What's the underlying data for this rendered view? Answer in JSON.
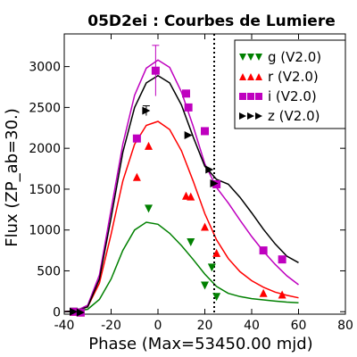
{
  "chart_data": {
    "type": "line",
    "title": "05D2ei : Courbes de Lumiere",
    "xlabel": "Phase (Max=53450.00 mjd)",
    "ylabel": "Flux (ZP_ab=30.)",
    "xlim": [
      -40,
      80
    ],
    "ylim": [
      -30,
      3400
    ],
    "x_ticks": [
      -40,
      -20,
      0,
      20,
      40,
      60,
      80
    ],
    "y_ticks": [
      0,
      500,
      1000,
      1500,
      2000,
      2500,
      3000
    ],
    "grid": false,
    "legend_position": "top-right",
    "vertical_line": {
      "x": 24,
      "style": "dotted"
    },
    "series": [
      {
        "name": "g (V2.0)",
        "color": "#008000",
        "marker": "triangle-down",
        "points": [
          [
            -36,
            0
          ],
          [
            -33,
            -10
          ],
          [
            -4,
            1260
          ],
          [
            14,
            850
          ],
          [
            20,
            320
          ],
          [
            23,
            540
          ],
          [
            25,
            180
          ]
        ],
        "curve": [
          [
            -40,
            0
          ],
          [
            -35,
            5
          ],
          [
            -30,
            30
          ],
          [
            -25,
            150
          ],
          [
            -20,
            400
          ],
          [
            -15,
            750
          ],
          [
            -10,
            1000
          ],
          [
            -5,
            1095
          ],
          [
            0,
            1070
          ],
          [
            5,
            960
          ],
          [
            10,
            810
          ],
          [
            15,
            640
          ],
          [
            20,
            460
          ],
          [
            25,
            310
          ],
          [
            30,
            225
          ],
          [
            35,
            185
          ],
          [
            40,
            160
          ],
          [
            45,
            145
          ],
          [
            50,
            130
          ],
          [
            55,
            118
          ],
          [
            60,
            110
          ]
        ]
      },
      {
        "name": "r (V2.0)",
        "color": "#ff0000",
        "marker": "triangle-up",
        "points": [
          [
            -36,
            0
          ],
          [
            -33,
            -10
          ],
          [
            -9,
            1650
          ],
          [
            -4,
            2030
          ],
          [
            12,
            1420
          ],
          [
            14,
            1410
          ],
          [
            20,
            1040
          ],
          [
            25,
            720
          ],
          [
            45,
            230
          ],
          [
            53,
            210
          ]
        ],
        "curve": [
          [
            -40,
            0
          ],
          [
            -35,
            10
          ],
          [
            -30,
            60
          ],
          [
            -25,
            350
          ],
          [
            -20,
            950
          ],
          [
            -15,
            1600
          ],
          [
            -10,
            2050
          ],
          [
            -5,
            2280
          ],
          [
            0,
            2330
          ],
          [
            5,
            2230
          ],
          [
            10,
            1970
          ],
          [
            15,
            1600
          ],
          [
            20,
            1200
          ],
          [
            25,
            880
          ],
          [
            30,
            650
          ],
          [
            35,
            490
          ],
          [
            40,
            380
          ],
          [
            45,
            300
          ],
          [
            50,
            240
          ],
          [
            55,
            200
          ],
          [
            60,
            170
          ]
        ]
      },
      {
        "name": "i (V2.0)",
        "color": "#bf00bf",
        "marker": "square",
        "points": [
          [
            -36,
            0
          ],
          [
            -33,
            -10
          ],
          [
            -9,
            2120
          ],
          [
            -1,
            2950
          ],
          [
            12,
            2670
          ],
          [
            13,
            2500
          ],
          [
            20,
            2210
          ],
          [
            25,
            1560
          ],
          [
            45,
            750
          ],
          [
            53,
            640
          ]
        ],
        "curve": [
          [
            -40,
            0
          ],
          [
            -35,
            10
          ],
          [
            -30,
            80
          ],
          [
            -25,
            450
          ],
          [
            -20,
            1250
          ],
          [
            -15,
            2050
          ],
          [
            -10,
            2650
          ],
          [
            -5,
            2980
          ],
          [
            0,
            3080
          ],
          [
            5,
            2990
          ],
          [
            10,
            2690
          ],
          [
            15,
            2270
          ],
          [
            20,
            1810
          ],
          [
            25,
            1520
          ],
          [
            30,
            1330
          ],
          [
            35,
            1120
          ],
          [
            40,
            920
          ],
          [
            45,
            740
          ],
          [
            50,
            580
          ],
          [
            55,
            440
          ],
          [
            60,
            330
          ]
        ]
      },
      {
        "name": "z (V2.0)",
        "color": "#000000",
        "marker": "triangle-right",
        "points": [
          [
            -36,
            0
          ],
          [
            -33,
            -10
          ],
          [
            -5,
            2460
          ],
          [
            13,
            2160
          ],
          [
            22,
            1740
          ],
          [
            24,
            1570
          ]
        ],
        "curve": [
          [
            -40,
            0
          ],
          [
            -35,
            10
          ],
          [
            -30,
            60
          ],
          [
            -25,
            400
          ],
          [
            -20,
            1150
          ],
          [
            -15,
            1950
          ],
          [
            -10,
            2500
          ],
          [
            -5,
            2800
          ],
          [
            0,
            2890
          ],
          [
            5,
            2800
          ],
          [
            10,
            2530
          ],
          [
            15,
            2140
          ],
          [
            20,
            1780
          ],
          [
            25,
            1620
          ],
          [
            30,
            1560
          ],
          [
            35,
            1400
          ],
          [
            40,
            1210
          ],
          [
            45,
            1010
          ],
          [
            50,
            830
          ],
          [
            55,
            680
          ],
          [
            60,
            600
          ]
        ]
      }
    ],
    "error_bars": [
      {
        "series": "i (V2.0)",
        "x": -1,
        "y": 2950,
        "err": 310
      },
      {
        "series": "z (V2.0)",
        "x": -5,
        "y": 2460,
        "err": 60
      }
    ]
  }
}
